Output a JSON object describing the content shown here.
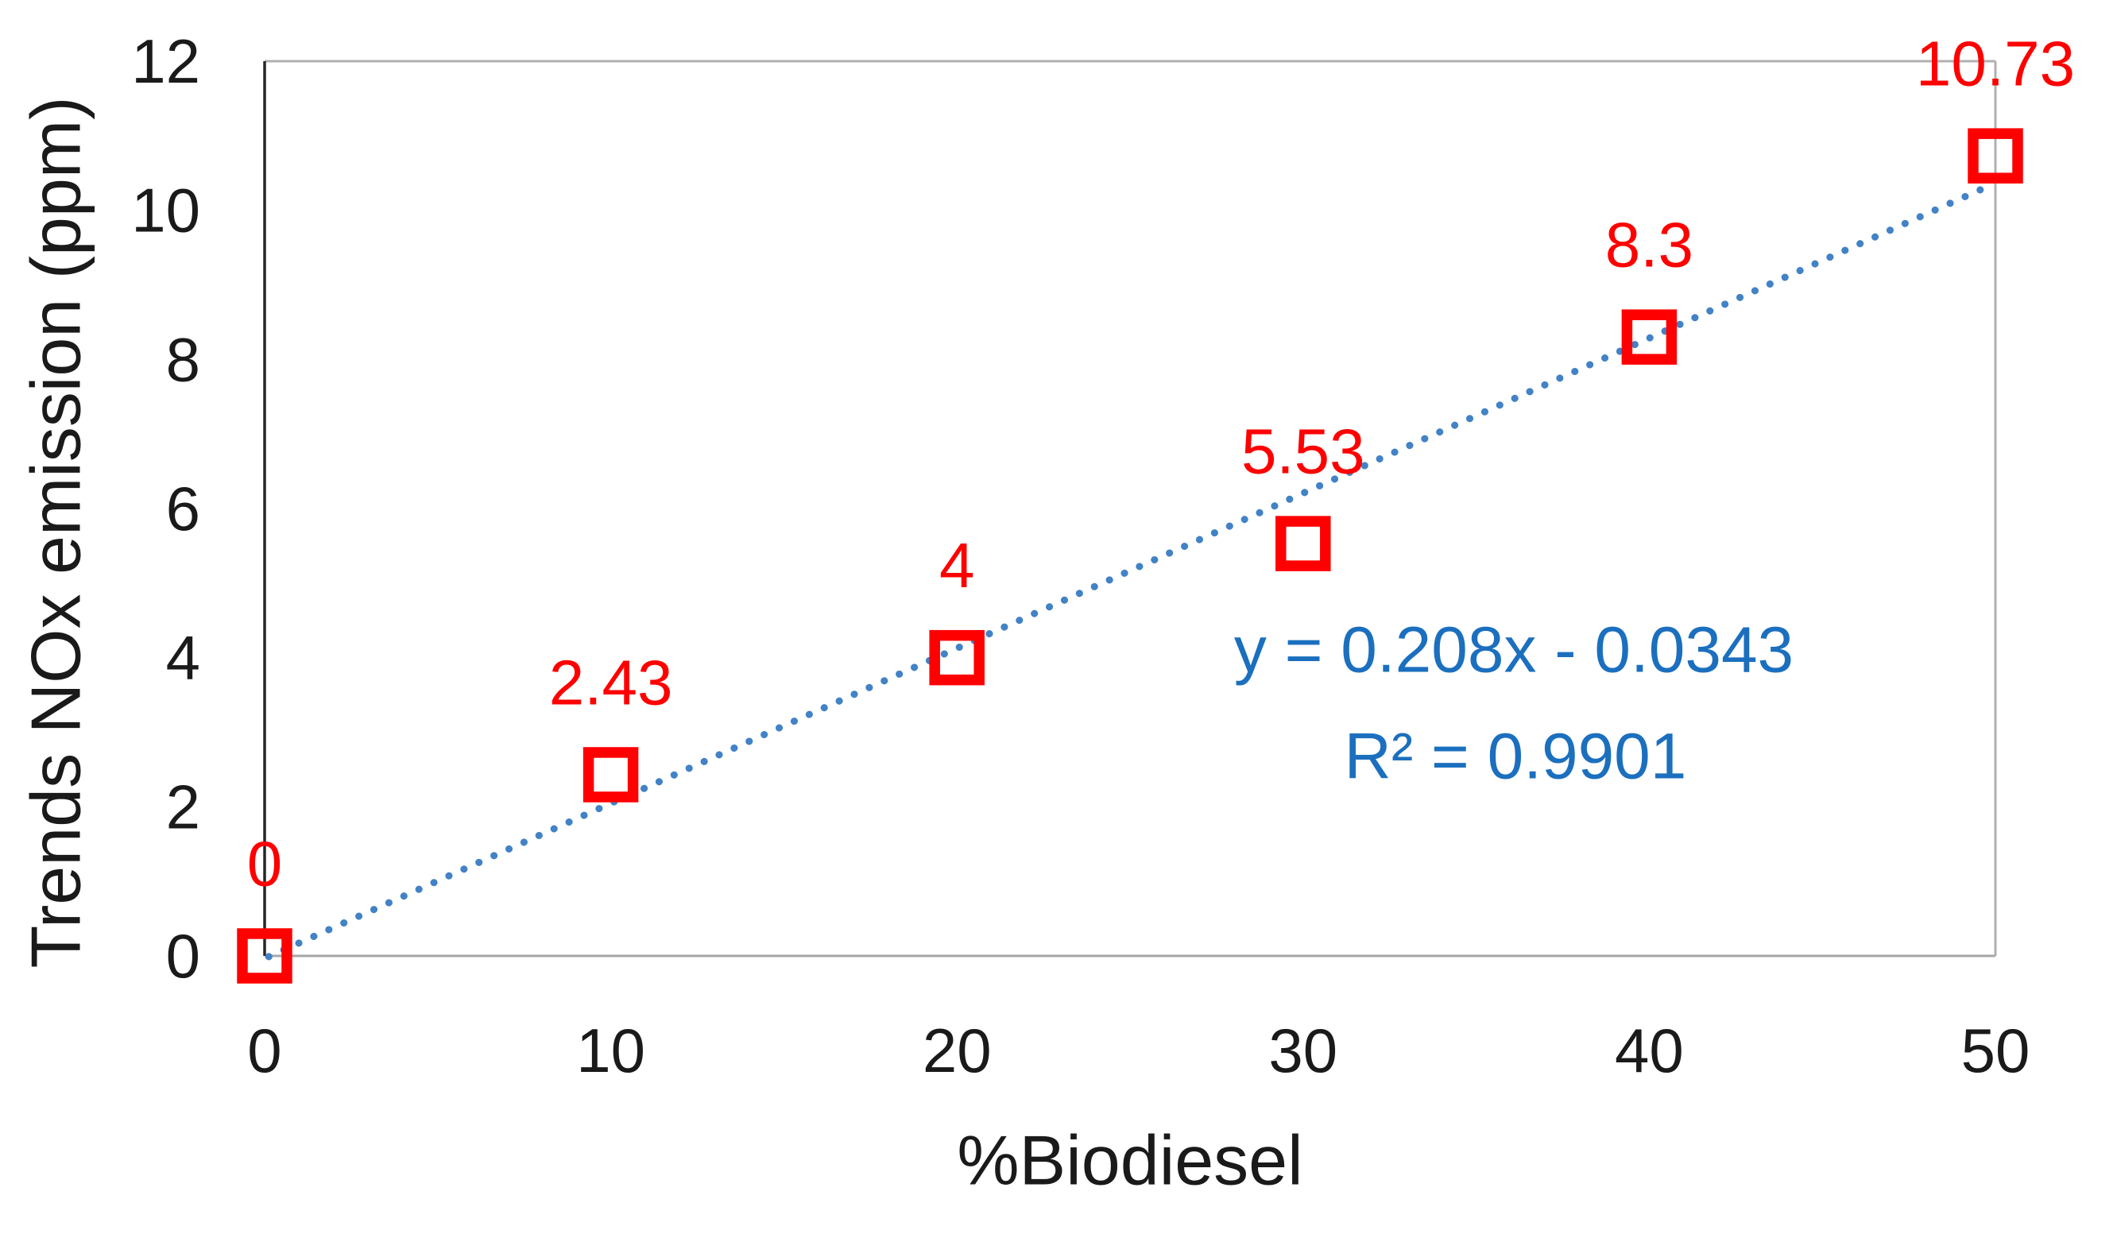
{
  "chart_data": {
    "type": "scatter",
    "title": "",
    "xlabel": "%Biodiesel",
    "ylabel": "Trends NOx emission (ppm)",
    "x": [
      0,
      10,
      20,
      30,
      40,
      50
    ],
    "y": [
      0,
      2.43,
      4,
      5.53,
      8.3,
      10.73
    ],
    "point_labels": [
      "0",
      "2.43",
      "4",
      "5.53",
      "8.3",
      "10.73"
    ],
    "xlim": [
      0,
      50
    ],
    "ylim": [
      0,
      12
    ],
    "x_ticks": [
      0,
      10,
      20,
      30,
      40,
      50
    ],
    "y_ticks": [
      0,
      2,
      4,
      6,
      8,
      10,
      12
    ],
    "grid": false,
    "legend_position": "none",
    "trendline": {
      "slope": 0.208,
      "intercept": -0.0343,
      "equation": "y = 0.208x - 0.0343",
      "r_squared": "R² = 0.9901",
      "style": "dotted"
    },
    "colors": {
      "marker": "#FE0000",
      "point_label": "#FE0000",
      "trendline": "#4282C6",
      "equation_text": "#1B6FBE",
      "axis_text": "#1A1A1A",
      "y_axis_line": "#262626",
      "plot_border": "#B0B0B0",
      "x_axis_line": "#A6A6A6"
    }
  }
}
